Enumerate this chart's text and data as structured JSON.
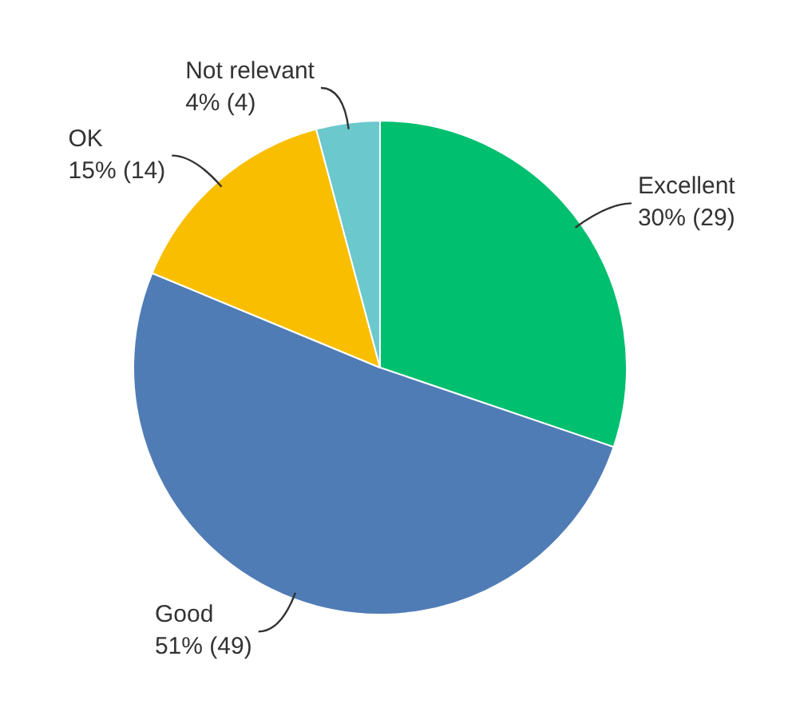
{
  "chart_data": {
    "type": "pie",
    "categories": [
      "Excellent",
      "Good",
      "OK",
      "Not relevant"
    ],
    "values": [
      29,
      49,
      14,
      4
    ],
    "value_labels": [
      "30% (29)",
      "51% (49)",
      "15% (14)",
      "4% (4)"
    ],
    "colors": [
      "#00bf6f",
      "#507cb6",
      "#f9be00",
      "#6bc8cd"
    ],
    "legend": false
  }
}
